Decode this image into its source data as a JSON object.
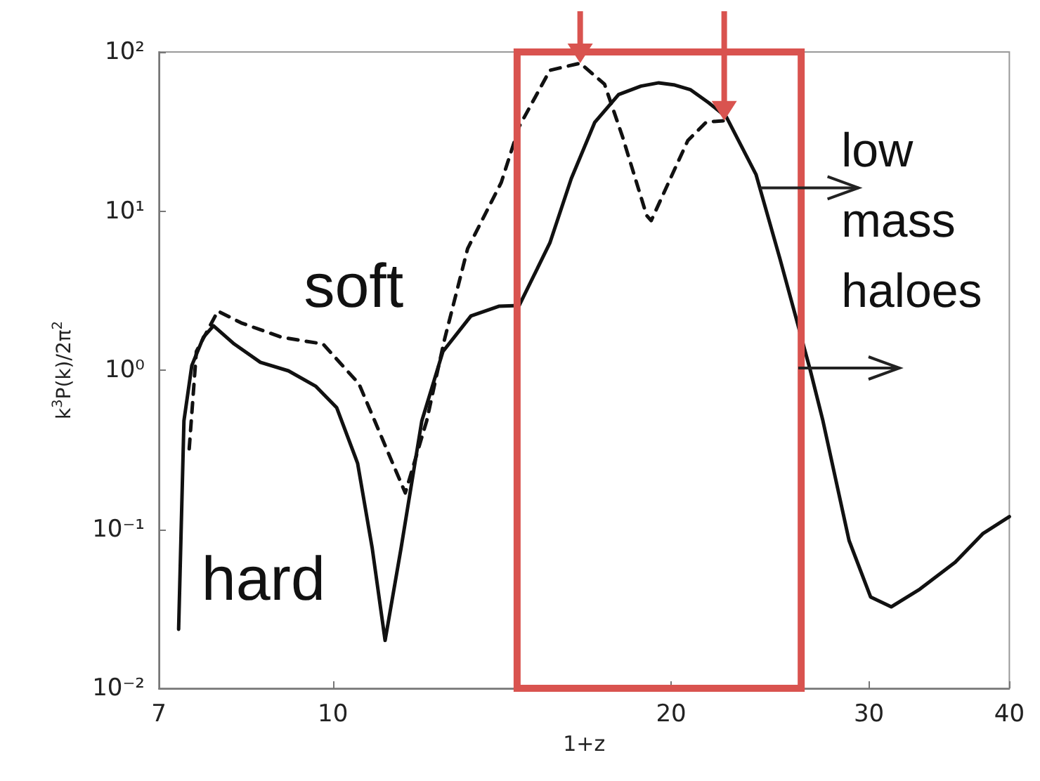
{
  "chart_data": {
    "type": "line",
    "xlabel": "1+z",
    "ylabel": "k$^{3}$P(k)/2π$^{2}$",
    "log": "xy",
    "xlim": [
      7,
      40
    ],
    "xticks": [
      7,
      10,
      20,
      30,
      40
    ],
    "ylim": [
      0.01,
      100
    ],
    "yticks": [
      {
        "value": 0.01,
        "label": "10⁻²"
      },
      {
        "value": 0.1,
        "label": "10⁻¹"
      },
      {
        "value": 1,
        "label": "10⁰"
      },
      {
        "value": 10,
        "label": "10¹"
      },
      {
        "value": 100,
        "label": "10²"
      }
    ],
    "grid": false,
    "legend": false,
    "marker": "none",
    "series": [
      {
        "name": "hard",
        "color": "#111111",
        "line_style": "solid",
        "x": [
          7.29,
          7.37,
          7.49,
          7.67,
          7.83,
          8.17,
          8.62,
          9.13,
          9.66,
          10.08,
          10.52,
          10.84,
          11.13,
          11.5,
          12.0,
          12.53,
          13.27,
          14.05,
          14.65,
          15.6,
          16.3,
          17.1,
          17.96,
          18.8,
          19.5,
          20.15,
          20.8,
          21.6,
          22.4,
          23.8,
          25.0,
          26.6,
          27.3,
          28.8,
          30.1,
          31.4,
          33.3,
          35.8,
          37.9,
          40
        ],
        "values": [
          0.0235,
          0.48,
          1.07,
          1.61,
          1.9,
          1.46,
          1.12,
          0.99,
          0.79,
          0.58,
          0.26,
          0.076,
          0.02,
          0.076,
          0.48,
          1.31,
          2.19,
          2.52,
          2.55,
          6.3,
          16,
          36,
          54,
          61,
          64,
          62,
          58,
          48,
          39,
          17,
          5,
          1.0,
          0.48,
          0.085,
          0.0375,
          0.0325,
          0.042,
          0.062,
          0.094,
          0.12
        ]
      },
      {
        "name": "soft",
        "color": "#111111",
        "line_style": "dashed",
        "x": [
          7.45,
          7.56,
          7.9,
          8.29,
          9.0,
          9.8,
          10.55,
          11.6,
          12.12,
          12.56,
          13.18,
          14.12,
          14.65,
          15.6,
          16.6,
          17.45,
          18.1,
          19.02,
          19.2,
          19.97,
          20.7,
          21.5,
          22.3
        ],
        "values": [
          0.32,
          1.31,
          2.35,
          1.98,
          1.61,
          1.46,
          0.82,
          0.169,
          0.48,
          1.52,
          5.8,
          15.1,
          34,
          76.7,
          85,
          62.7,
          29.5,
          9.4,
          8.7,
          16,
          27.8,
          36.3,
          37
        ]
      }
    ],
    "annotations": [
      {
        "text": "low mass haloes",
        "x": 24.0,
        "y": 14
      }
    ]
  }
}
